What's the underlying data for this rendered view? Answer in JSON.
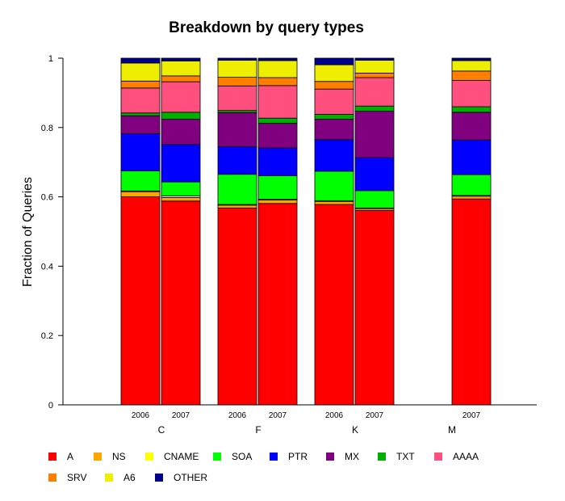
{
  "chart_data": {
    "type": "bar",
    "stacked": true,
    "title": "Breakdown by query types",
    "ylabel": "Fraction of Queries",
    "xlabel": "",
    "ylim": [
      0,
      1
    ],
    "yticks": [
      "0",
      "0.2",
      "0.4",
      "0.6",
      "0.8",
      "1"
    ],
    "grid": false,
    "legend_position": "bottom",
    "groups": [
      "C",
      "F",
      "K",
      "M"
    ],
    "bars": [
      {
        "group": "C",
        "label": "2006",
        "values": [
          0.6,
          0.015,
          0.002,
          0.058,
          0.107,
          0.052,
          0.008,
          0.072,
          0.02,
          0.052,
          0.014
        ]
      },
      {
        "group": "C",
        "label": "2007",
        "values": [
          0.588,
          0.01,
          0.005,
          0.04,
          0.108,
          0.073,
          0.02,
          0.088,
          0.017,
          0.043,
          0.008
        ]
      },
      {
        "group": "F",
        "label": "2006",
        "values": [
          0.568,
          0.008,
          0.002,
          0.087,
          0.08,
          0.098,
          0.006,
          0.071,
          0.025,
          0.049,
          0.006
        ]
      },
      {
        "group": "F",
        "label": "2007",
        "values": [
          0.581,
          0.01,
          0.002,
          0.068,
          0.08,
          0.071,
          0.015,
          0.094,
          0.023,
          0.049,
          0.007
        ]
      },
      {
        "group": "K",
        "label": "2006",
        "values": [
          0.578,
          0.008,
          0.003,
          0.085,
          0.091,
          0.059,
          0.014,
          0.073,
          0.022,
          0.048,
          0.019
        ]
      },
      {
        "group": "K",
        "label": "2007",
        "values": [
          0.561,
          0.005,
          0.002,
          0.05,
          0.095,
          0.134,
          0.015,
          0.082,
          0.013,
          0.037,
          0.006
        ]
      },
      {
        "group": "M",
        "label": "2007",
        "values": [
          0.594,
          0.008,
          0.002,
          0.06,
          0.1,
          0.08,
          0.016,
          0.076,
          0.027,
          0.03,
          0.007
        ]
      }
    ],
    "series": [
      {
        "name": "A",
        "color": "#ff0000"
      },
      {
        "name": "NS",
        "color": "#ffa500"
      },
      {
        "name": "CNAME",
        "color": "#ffff00"
      },
      {
        "name": "SOA",
        "color": "#00ff00"
      },
      {
        "name": "PTR",
        "color": "#0000ff"
      },
      {
        "name": "MX",
        "color": "#800080"
      },
      {
        "name": "TXT",
        "color": "#00b000"
      },
      {
        "name": "AAAA",
        "color": "#ff4f7f"
      },
      {
        "name": "SRV",
        "color": "#ff7f00"
      },
      {
        "name": "A6",
        "color": "#eeee00"
      },
      {
        "name": "OTHER",
        "color": "#00008b"
      }
    ]
  }
}
